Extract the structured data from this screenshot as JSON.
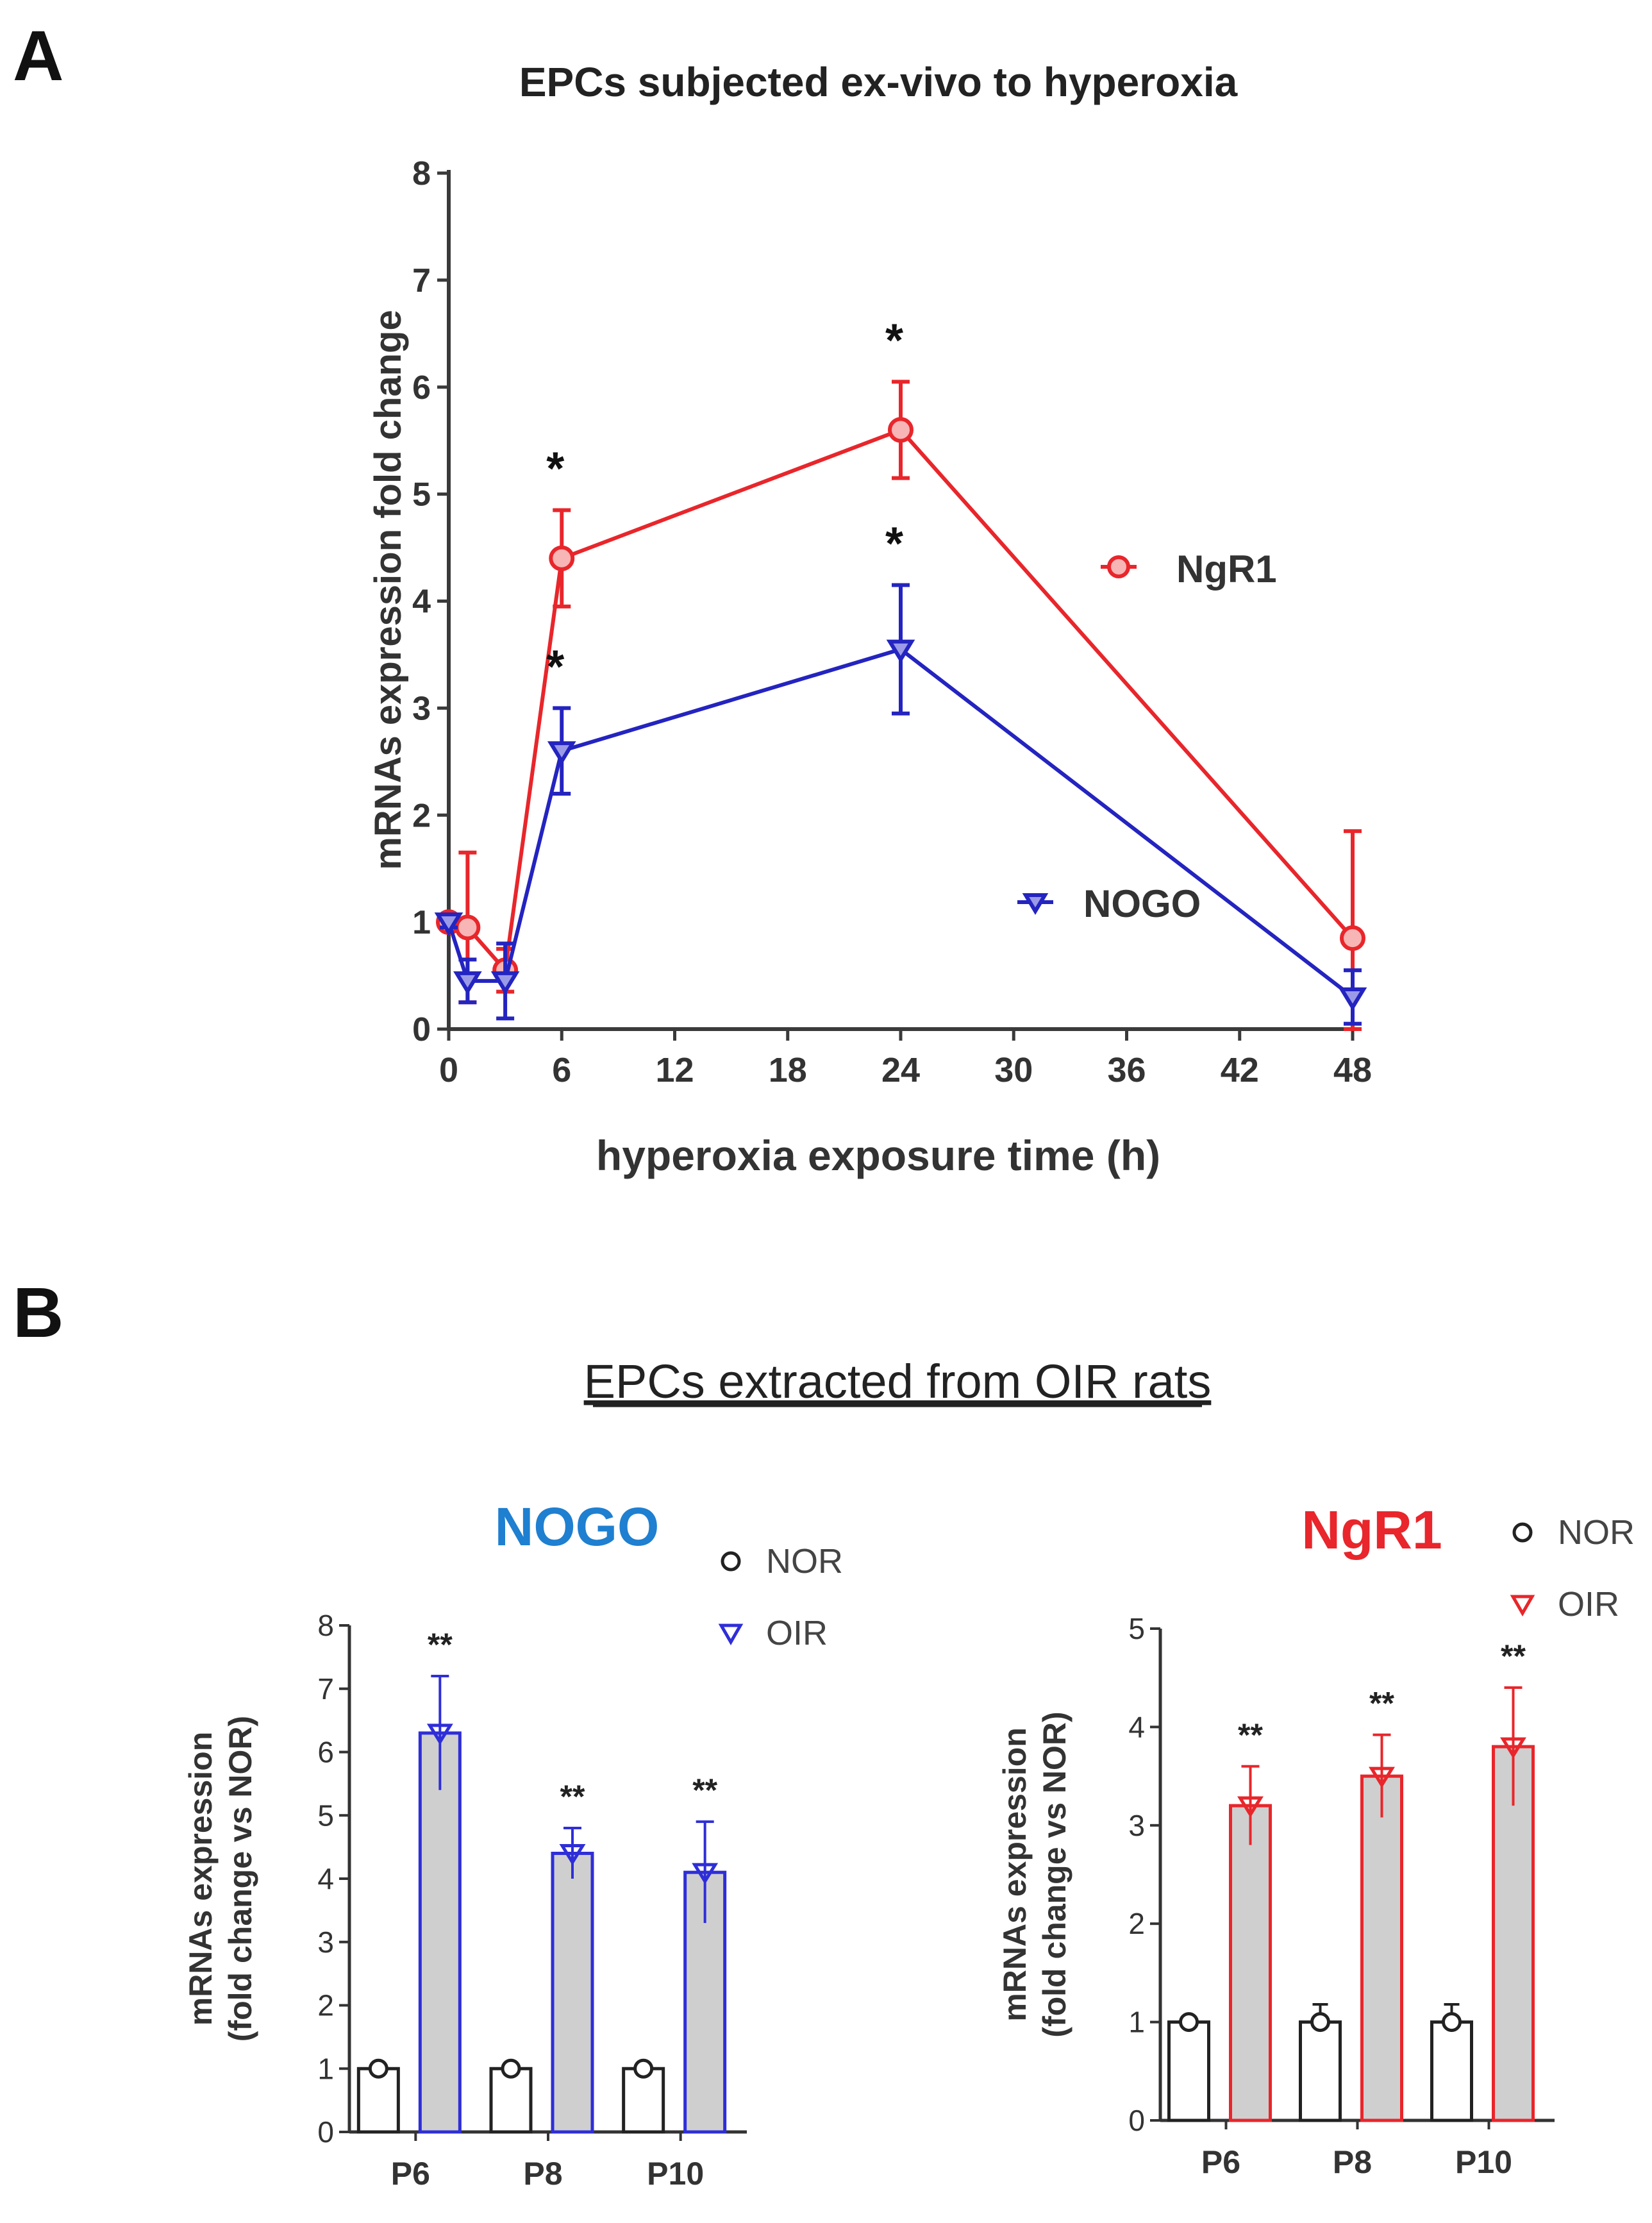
{
  "panel_a": {
    "label": "A",
    "colors": {
      "ngr1": "#e8262b",
      "nogo": "#2424c0",
      "axis": "#3a3a3a"
    }
  },
  "panel_b": {
    "label": "B",
    "heading": "EPCs extracted from OIR rats",
    "colors": {
      "nogo": "#2e2ed8",
      "nogo_title": "#1f7fd0",
      "ngr1": "#e8262b",
      "bar_fill": "#cfcfcf",
      "nor": "#222222"
    }
  },
  "chart_data": [
    {
      "type": "line",
      "title": "EPCs subjected ex-vivo to hyperoxia",
      "xlabel": "hyperoxia exposure time (h)",
      "ylabel": "mRNAs expression fold change",
      "xlim": [
        0,
        48
      ],
      "ylim": [
        0,
        8
      ],
      "xticks": [
        0,
        6,
        12,
        18,
        24,
        30,
        36,
        42,
        48
      ],
      "yticks": [
        0,
        1,
        2,
        3,
        4,
        5,
        6,
        7,
        8
      ],
      "series": [
        {
          "name": "NgR1",
          "marker": "circle",
          "x": [
            0,
            1,
            3,
            6,
            24,
            48
          ],
          "y": [
            1.0,
            0.95,
            0.55,
            4.4,
            5.6,
            0.85
          ],
          "err": [
            0.05,
            0.7,
            0.2,
            0.45,
            0.45,
            1.0
          ],
          "sig": [
            "",
            "",
            "",
            "*",
            "*",
            ""
          ]
        },
        {
          "name": "NOGO",
          "marker": "triangle-down",
          "x": [
            0,
            1,
            3,
            6,
            24,
            48
          ],
          "y": [
            1.0,
            0.45,
            0.45,
            2.6,
            3.55,
            0.3
          ],
          "err": [
            0.05,
            0.2,
            0.35,
            0.4,
            0.6,
            0.25
          ],
          "sig": [
            "",
            "",
            "",
            "*",
            "*",
            ""
          ]
        }
      ]
    },
    {
      "type": "bar",
      "title": "NOGO",
      "ylabel_lines": [
        "mRNAs expression",
        "(fold change vs NOR)"
      ],
      "categories": [
        "P6",
        "P8",
        "P10"
      ],
      "ylim": [
        0,
        8
      ],
      "yticks": [
        0,
        1,
        2,
        3,
        4,
        5,
        6,
        7,
        8
      ],
      "legend": [
        "NOR",
        "OIR"
      ],
      "series": [
        {
          "name": "NOR",
          "values": [
            1.0,
            1.0,
            1.0
          ],
          "err": [
            0.05,
            0.08,
            0.08
          ]
        },
        {
          "name": "OIR",
          "values": [
            6.3,
            4.4,
            4.1
          ],
          "err": [
            0.9,
            0.4,
            0.8
          ]
        }
      ],
      "sig": [
        "**",
        "**",
        "**"
      ]
    },
    {
      "type": "bar",
      "title": "NgR1",
      "ylabel_lines": [
        "mRNAs expression",
        "(fold change vs NOR)"
      ],
      "categories": [
        "P6",
        "P8",
        "P10"
      ],
      "ylim": [
        0,
        5
      ],
      "yticks": [
        0,
        1,
        2,
        3,
        4,
        5
      ],
      "legend": [
        "NOR",
        "OIR"
      ],
      "series": [
        {
          "name": "NOR",
          "values": [
            1.0,
            1.0,
            1.0
          ],
          "err": [
            0.05,
            0.18,
            0.18
          ]
        },
        {
          "name": "OIR",
          "values": [
            3.2,
            3.5,
            3.8
          ],
          "err": [
            0.4,
            0.42,
            0.6
          ]
        }
      ],
      "sig": [
        "**",
        "**",
        "**"
      ]
    }
  ]
}
